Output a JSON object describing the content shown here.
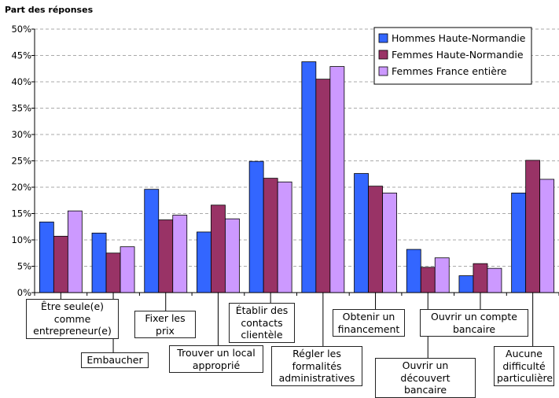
{
  "chart_data": {
    "type": "bar",
    "ylabel": "Part des réponses",
    "ylim": [
      0,
      50
    ],
    "yticks": [
      "0%",
      "5%",
      "10%",
      "15%",
      "20%",
      "25%",
      "30%",
      "35%",
      "40%",
      "45%",
      "50%"
    ],
    "grid": true,
    "legend_position": "top-right",
    "categories": [
      "Être seule(e) comme entrepreneur(e)",
      "Embaucher",
      "Fixer les prix",
      "Trouver un local approprié",
      "Établir des contacts clientèle",
      "Régler les formalités administratives",
      "Obtenir un financement",
      "Ouvrir un découvert bancaire",
      "Ouvrir un compte bancaire",
      "Aucune difficulté particulière"
    ],
    "series": [
      {
        "name": "Hommes Haute-Normandie",
        "color": "#3366ff",
        "values": [
          13.4,
          11.3,
          19.6,
          11.5,
          24.9,
          43.8,
          22.6,
          8.2,
          3.2,
          18.9
        ]
      },
      {
        "name": "Femmes Haute-Normandie",
        "color": "#993366",
        "values": [
          10.7,
          7.5,
          13.8,
          16.6,
          21.7,
          40.5,
          20.2,
          4.8,
          5.5,
          25.1
        ]
      },
      {
        "name": "Femmes France entière",
        "color": "#cc99ff",
        "values": [
          15.5,
          8.7,
          14.7,
          14.0,
          21.0,
          42.9,
          18.9,
          6.6,
          4.6,
          21.5
        ]
      }
    ]
  }
}
